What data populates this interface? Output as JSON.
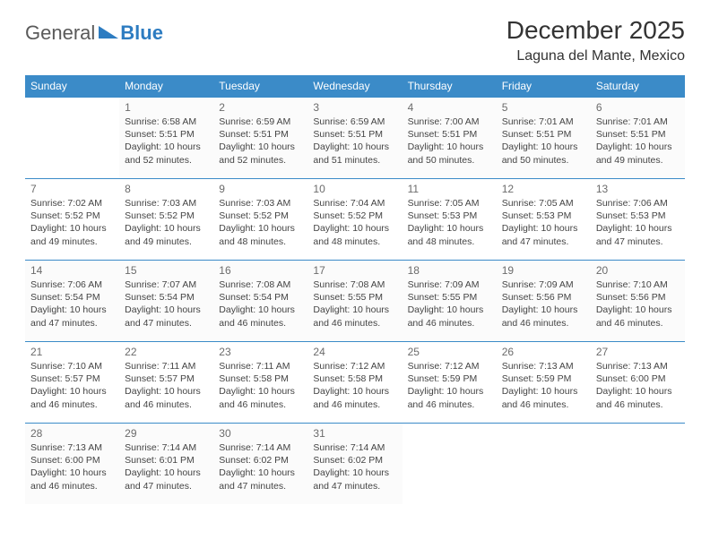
{
  "logo": {
    "part1": "General",
    "part2": "Blue"
  },
  "title": "December 2025",
  "location": "Laguna del Mante, Mexico",
  "header_bg": "#3b8bc8",
  "header_text_color": "#ffffff",
  "divider_color": "#3b8bc8",
  "weekdays": [
    "Sunday",
    "Monday",
    "Tuesday",
    "Wednesday",
    "Thursday",
    "Friday",
    "Saturday"
  ],
  "weeks": [
    [
      null,
      {
        "d": "1",
        "sr": "Sunrise: 6:58 AM",
        "ss": "Sunset: 5:51 PM",
        "dl1": "Daylight: 10 hours",
        "dl2": "and 52 minutes."
      },
      {
        "d": "2",
        "sr": "Sunrise: 6:59 AM",
        "ss": "Sunset: 5:51 PM",
        "dl1": "Daylight: 10 hours",
        "dl2": "and 52 minutes."
      },
      {
        "d": "3",
        "sr": "Sunrise: 6:59 AM",
        "ss": "Sunset: 5:51 PM",
        "dl1": "Daylight: 10 hours",
        "dl2": "and 51 minutes."
      },
      {
        "d": "4",
        "sr": "Sunrise: 7:00 AM",
        "ss": "Sunset: 5:51 PM",
        "dl1": "Daylight: 10 hours",
        "dl2": "and 50 minutes."
      },
      {
        "d": "5",
        "sr": "Sunrise: 7:01 AM",
        "ss": "Sunset: 5:51 PM",
        "dl1": "Daylight: 10 hours",
        "dl2": "and 50 minutes."
      },
      {
        "d": "6",
        "sr": "Sunrise: 7:01 AM",
        "ss": "Sunset: 5:51 PM",
        "dl1": "Daylight: 10 hours",
        "dl2": "and 49 minutes."
      }
    ],
    [
      {
        "d": "7",
        "sr": "Sunrise: 7:02 AM",
        "ss": "Sunset: 5:52 PM",
        "dl1": "Daylight: 10 hours",
        "dl2": "and 49 minutes."
      },
      {
        "d": "8",
        "sr": "Sunrise: 7:03 AM",
        "ss": "Sunset: 5:52 PM",
        "dl1": "Daylight: 10 hours",
        "dl2": "and 49 minutes."
      },
      {
        "d": "9",
        "sr": "Sunrise: 7:03 AM",
        "ss": "Sunset: 5:52 PM",
        "dl1": "Daylight: 10 hours",
        "dl2": "and 48 minutes."
      },
      {
        "d": "10",
        "sr": "Sunrise: 7:04 AM",
        "ss": "Sunset: 5:52 PM",
        "dl1": "Daylight: 10 hours",
        "dl2": "and 48 minutes."
      },
      {
        "d": "11",
        "sr": "Sunrise: 7:05 AM",
        "ss": "Sunset: 5:53 PM",
        "dl1": "Daylight: 10 hours",
        "dl2": "and 48 minutes."
      },
      {
        "d": "12",
        "sr": "Sunrise: 7:05 AM",
        "ss": "Sunset: 5:53 PM",
        "dl1": "Daylight: 10 hours",
        "dl2": "and 47 minutes."
      },
      {
        "d": "13",
        "sr": "Sunrise: 7:06 AM",
        "ss": "Sunset: 5:53 PM",
        "dl1": "Daylight: 10 hours",
        "dl2": "and 47 minutes."
      }
    ],
    [
      {
        "d": "14",
        "sr": "Sunrise: 7:06 AM",
        "ss": "Sunset: 5:54 PM",
        "dl1": "Daylight: 10 hours",
        "dl2": "and 47 minutes."
      },
      {
        "d": "15",
        "sr": "Sunrise: 7:07 AM",
        "ss": "Sunset: 5:54 PM",
        "dl1": "Daylight: 10 hours",
        "dl2": "and 47 minutes."
      },
      {
        "d": "16",
        "sr": "Sunrise: 7:08 AM",
        "ss": "Sunset: 5:54 PM",
        "dl1": "Daylight: 10 hours",
        "dl2": "and 46 minutes."
      },
      {
        "d": "17",
        "sr": "Sunrise: 7:08 AM",
        "ss": "Sunset: 5:55 PM",
        "dl1": "Daylight: 10 hours",
        "dl2": "and 46 minutes."
      },
      {
        "d": "18",
        "sr": "Sunrise: 7:09 AM",
        "ss": "Sunset: 5:55 PM",
        "dl1": "Daylight: 10 hours",
        "dl2": "and 46 minutes."
      },
      {
        "d": "19",
        "sr": "Sunrise: 7:09 AM",
        "ss": "Sunset: 5:56 PM",
        "dl1": "Daylight: 10 hours",
        "dl2": "and 46 minutes."
      },
      {
        "d": "20",
        "sr": "Sunrise: 7:10 AM",
        "ss": "Sunset: 5:56 PM",
        "dl1": "Daylight: 10 hours",
        "dl2": "and 46 minutes."
      }
    ],
    [
      {
        "d": "21",
        "sr": "Sunrise: 7:10 AM",
        "ss": "Sunset: 5:57 PM",
        "dl1": "Daylight: 10 hours",
        "dl2": "and 46 minutes."
      },
      {
        "d": "22",
        "sr": "Sunrise: 7:11 AM",
        "ss": "Sunset: 5:57 PM",
        "dl1": "Daylight: 10 hours",
        "dl2": "and 46 minutes."
      },
      {
        "d": "23",
        "sr": "Sunrise: 7:11 AM",
        "ss": "Sunset: 5:58 PM",
        "dl1": "Daylight: 10 hours",
        "dl2": "and 46 minutes."
      },
      {
        "d": "24",
        "sr": "Sunrise: 7:12 AM",
        "ss": "Sunset: 5:58 PM",
        "dl1": "Daylight: 10 hours",
        "dl2": "and 46 minutes."
      },
      {
        "d": "25",
        "sr": "Sunrise: 7:12 AM",
        "ss": "Sunset: 5:59 PM",
        "dl1": "Daylight: 10 hours",
        "dl2": "and 46 minutes."
      },
      {
        "d": "26",
        "sr": "Sunrise: 7:13 AM",
        "ss": "Sunset: 5:59 PM",
        "dl1": "Daylight: 10 hours",
        "dl2": "and 46 minutes."
      },
      {
        "d": "27",
        "sr": "Sunrise: 7:13 AM",
        "ss": "Sunset: 6:00 PM",
        "dl1": "Daylight: 10 hours",
        "dl2": "and 46 minutes."
      }
    ],
    [
      {
        "d": "28",
        "sr": "Sunrise: 7:13 AM",
        "ss": "Sunset: 6:00 PM",
        "dl1": "Daylight: 10 hours",
        "dl2": "and 46 minutes."
      },
      {
        "d": "29",
        "sr": "Sunrise: 7:14 AM",
        "ss": "Sunset: 6:01 PM",
        "dl1": "Daylight: 10 hours",
        "dl2": "and 47 minutes."
      },
      {
        "d": "30",
        "sr": "Sunrise: 7:14 AM",
        "ss": "Sunset: 6:02 PM",
        "dl1": "Daylight: 10 hours",
        "dl2": "and 47 minutes."
      },
      {
        "d": "31",
        "sr": "Sunrise: 7:14 AM",
        "ss": "Sunset: 6:02 PM",
        "dl1": "Daylight: 10 hours",
        "dl2": "and 47 minutes."
      },
      null,
      null,
      null
    ]
  ]
}
